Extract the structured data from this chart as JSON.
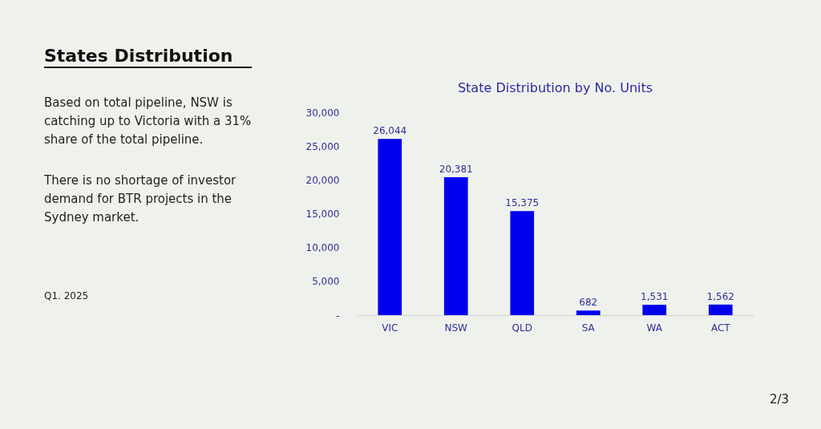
{
  "chart_data": {
    "type": "bar",
    "title": "State Distribution by No. Units",
    "categories": [
      "VIC",
      "NSW",
      "QLD",
      "SA",
      "WA",
      "ACT"
    ],
    "values": [
      26044,
      20381,
      15375,
      682,
      1531,
      1562
    ],
    "color": "#0000ee",
    "ylim": [
      0,
      30000
    ],
    "yticks": [
      {
        "value": 0,
        "label": "-"
      },
      {
        "value": 5000,
        "label": "5,000"
      },
      {
        "value": 10000,
        "label": "10,000"
      },
      {
        "value": 15000,
        "label": "15,000"
      },
      {
        "value": 20000,
        "label": "20,000"
      },
      {
        "value": 25000,
        "label": "25,000"
      },
      {
        "value": 30000,
        "label": "30,000"
      }
    ],
    "value_labels": [
      "26,044",
      "20,381",
      "15,375",
      "682",
      "1,531",
      "1,562"
    ],
    "grid": false,
    "annotations": [
      "States Distribution",
      "Based on total pipeline, NSW is catching up to Victoria with a 31% share of the total pipeline.",
      "There is no shortage of investor demand for BTR projects in the Sydney market.",
      "Q1. 2025",
      "2/3"
    ]
  }
}
